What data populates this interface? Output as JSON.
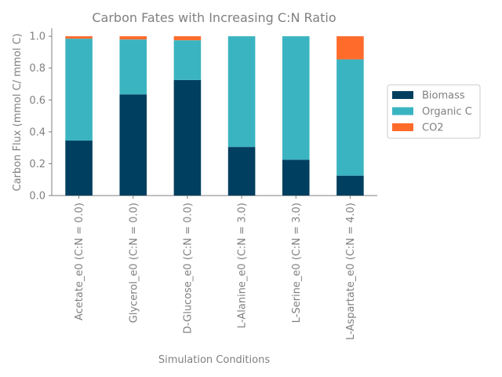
{
  "chart_data": {
    "type": "bar",
    "stacked": true,
    "title": "Carbon Fates with Increasing C:N Ratio",
    "xlabel": "Simulation Conditions",
    "ylabel": "Carbon Flux (mmol C/ mmol C)",
    "ylim": [
      0,
      1.05
    ],
    "yticks": [
      "0.0",
      "0.2",
      "0.4",
      "0.6",
      "0.8",
      "1.0"
    ],
    "grid": false,
    "legend_position": "right",
    "categories": [
      "Acetate_e0 (C:N = 0.0)",
      "Glycerol_e0 (C:N = 0.0)",
      "D-Glucose_e0 (C:N = 0.0)",
      "L-Alanine_e0 (C:N = 3.0)",
      "L-Serine_e0 (C:N = 3.0)",
      "L-Aspartate_e0 (C:N = 4.0)"
    ],
    "series": [
      {
        "name": "Biomass",
        "color": "#003f5f",
        "values": [
          0.345,
          0.635,
          0.725,
          0.305,
          0.225,
          0.125
        ]
      },
      {
        "name": "Organic C",
        "color": "#3bb4c1",
        "values": [
          0.64,
          0.345,
          0.25,
          0.695,
          0.775,
          0.73
        ]
      },
      {
        "name": "CO2",
        "color": "#ff6b2b",
        "values": [
          0.015,
          0.02,
          0.025,
          0.0,
          0.0,
          0.145
        ]
      }
    ]
  }
}
